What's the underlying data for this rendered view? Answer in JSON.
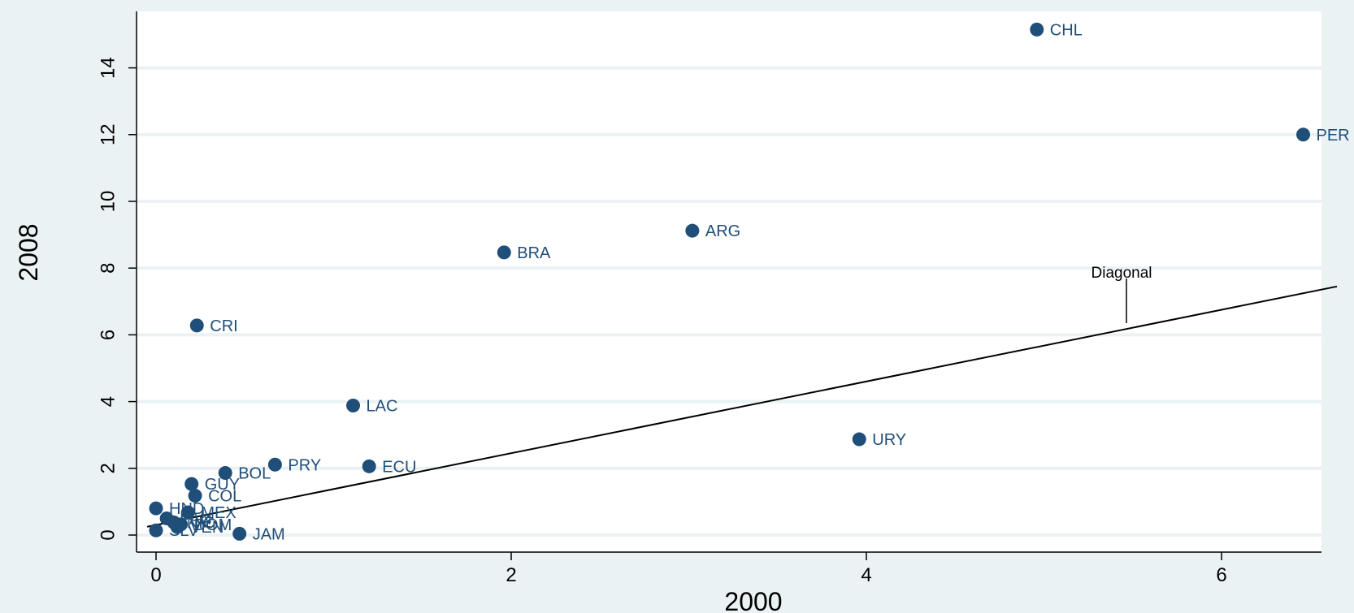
{
  "chart_data": {
    "type": "scatter",
    "xlabel": "2000",
    "ylabel": "2008",
    "xlim": [
      -0.2,
      6.7
    ],
    "ylim": [
      -0.6,
      15.6
    ],
    "xticks": [
      0,
      2,
      4,
      6
    ],
    "yticks": [
      0,
      2,
      4,
      6,
      8,
      10,
      12,
      14
    ],
    "grid": "horizontal",
    "marker_color": "#1f4e79",
    "points": [
      {
        "label": "CHL",
        "x": 4.96,
        "y": 15.15
      },
      {
        "label": "PER",
        "x": 6.46,
        "y": 12.0
      },
      {
        "label": "ARG",
        "x": 3.02,
        "y": 9.12
      },
      {
        "label": "BRA",
        "x": 1.96,
        "y": 8.47
      },
      {
        "label": "CRI",
        "x": 0.23,
        "y": 6.28
      },
      {
        "label": "LAC",
        "x": 1.11,
        "y": 3.88
      },
      {
        "label": "URY",
        "x": 3.96,
        "y": 2.87
      },
      {
        "label": "PRY",
        "x": 0.67,
        "y": 2.11
      },
      {
        "label": "ECU",
        "x": 1.2,
        "y": 2.06
      },
      {
        "label": "BOL",
        "x": 0.39,
        "y": 1.86
      },
      {
        "label": "GUY",
        "x": 0.2,
        "y": 1.53
      },
      {
        "label": "COL",
        "x": 0.22,
        "y": 1.18
      },
      {
        "label": "HND",
        "x": 0.0,
        "y": 0.8
      },
      {
        "label": "MEX",
        "x": 0.18,
        "y": 0.68
      },
      {
        "label": "PAN",
        "x": 0.06,
        "y": 0.5
      },
      {
        "label": "NIC",
        "x": 0.1,
        "y": 0.38
      },
      {
        "label": "DOM",
        "x": 0.14,
        "y": 0.32
      },
      {
        "label": "VEN",
        "x": 0.12,
        "y": 0.24
      },
      {
        "label": "SLV",
        "x": 0.0,
        "y": 0.14
      },
      {
        "label": "JAM",
        "x": 0.47,
        "y": 0.04
      }
    ],
    "diagonal": {
      "label": "Diagonal",
      "x": [
        -0.05,
        6.65
      ],
      "y": [
        0.25,
        7.45
      ]
    }
  }
}
